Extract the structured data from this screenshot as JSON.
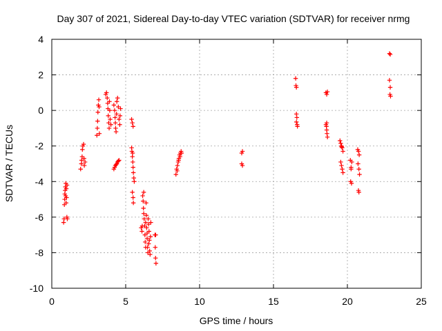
{
  "chart_data": {
    "type": "scatter",
    "title": "Day 307 of 2021, Sidereal Day-to-day VTEC variation (SDTVAR) for receiver nrmg",
    "xlabel": "GPS time / hours",
    "ylabel": "SDTVAR / TECUs",
    "xlim": [
      0,
      25
    ],
    "ylim": [
      -10,
      4
    ],
    "xticks": [
      0,
      5,
      10,
      15,
      20,
      25
    ],
    "yticks": [
      -10,
      -8,
      -6,
      -4,
      -2,
      0,
      2,
      4
    ],
    "xtick_labels": [
      "0",
      "5",
      "10",
      "15",
      "20",
      "25"
    ],
    "ytick_labels": [
      "-10",
      "-8",
      "-6",
      "-4",
      "-2",
      "0",
      "2",
      "4"
    ],
    "grid": true,
    "legend": "none",
    "marker": "plus",
    "color": "#ff0000",
    "points": [
      [
        0.8,
        -6.3
      ],
      [
        0.83,
        -6.1
      ],
      [
        0.85,
        -5.3
      ],
      [
        0.87,
        -5.0
      ],
      [
        0.88,
        -4.7
      ],
      [
        0.9,
        -4.5
      ],
      [
        0.92,
        -4.3
      ],
      [
        0.95,
        -4.1
      ],
      [
        0.97,
        -5.2
      ],
      [
        1.0,
        -4.9
      ],
      [
        1.02,
        -6.0
      ],
      [
        1.05,
        -6.1
      ],
      [
        0.93,
        -4.8
      ],
      [
        0.98,
        -4.4
      ],
      [
        1.03,
        -4.2
      ],
      [
        1.95,
        -3.3
      ],
      [
        2.0,
        -3.0
      ],
      [
        2.02,
        -2.8
      ],
      [
        2.05,
        -2.6
      ],
      [
        2.07,
        -2.2
      ],
      [
        2.1,
        -2.0
      ],
      [
        2.15,
        -1.9
      ],
      [
        2.18,
        -2.7
      ],
      [
        2.2,
        -3.1
      ],
      [
        2.25,
        -2.9
      ],
      [
        3.05,
        -1.4
      ],
      [
        3.08,
        -1.0
      ],
      [
        3.1,
        -0.6
      ],
      [
        3.12,
        -0.1
      ],
      [
        3.15,
        0.3
      ],
      [
        3.18,
        0.6
      ],
      [
        3.2,
        0.2
      ],
      [
        3.22,
        -1.3
      ],
      [
        3.65,
        0.9
      ],
      [
        3.7,
        1.0
      ],
      [
        3.75,
        0.7
      ],
      [
        3.78,
        0.4
      ],
      [
        3.8,
        0.1
      ],
      [
        3.82,
        -0.3
      ],
      [
        3.85,
        -0.7
      ],
      [
        3.88,
        -1.0
      ],
      [
        3.9,
        0.5
      ],
      [
        3.92,
        0.0
      ],
      [
        3.95,
        -0.5
      ],
      [
        4.0,
        -0.8
      ],
      [
        4.2,
        0.3
      ],
      [
        4.25,
        0.0
      ],
      [
        4.28,
        -0.4
      ],
      [
        4.3,
        -0.7
      ],
      [
        4.32,
        -1.0
      ],
      [
        4.35,
        -1.2
      ],
      [
        4.38,
        -0.2
      ],
      [
        4.4,
        0.5
      ],
      [
        4.45,
        0.7
      ],
      [
        4.5,
        0.2
      ],
      [
        4.55,
        -0.5
      ],
      [
        4.6,
        -0.8
      ],
      [
        4.62,
        -0.3
      ],
      [
        4.65,
        0.1
      ],
      [
        4.2,
        -3.3
      ],
      [
        4.25,
        -3.2
      ],
      [
        4.3,
        -3.1
      ],
      [
        4.35,
        -3.05
      ],
      [
        4.4,
        -3.0
      ],
      [
        4.45,
        -2.9
      ],
      [
        4.5,
        -2.85
      ],
      [
        4.55,
        -2.8
      ],
      [
        5.4,
        -0.5
      ],
      [
        5.45,
        -0.7
      ],
      [
        5.5,
        -0.9
      ],
      [
        5.4,
        -2.1
      ],
      [
        5.42,
        -2.3
      ],
      [
        5.45,
        -2.6
      ],
      [
        5.48,
        -2.9
      ],
      [
        5.5,
        -3.2
      ],
      [
        5.52,
        -3.5
      ],
      [
        5.55,
        -3.8
      ],
      [
        5.58,
        -4.0
      ],
      [
        5.45,
        -4.6
      ],
      [
        5.5,
        -4.9
      ],
      [
        5.52,
        -5.2
      ],
      [
        5.47,
        -2.4
      ],
      [
        6.05,
        -6.6
      ],
      [
        6.1,
        -6.8
      ],
      [
        6.15,
        -4.8
      ],
      [
        6.18,
        -5.1
      ],
      [
        6.2,
        -5.5
      ],
      [
        6.22,
        -5.8
      ],
      [
        6.25,
        -6.1
      ],
      [
        6.28,
        -6.5
      ],
      [
        6.3,
        -7.0
      ],
      [
        6.32,
        -7.4
      ],
      [
        6.35,
        -7.7
      ],
      [
        6.38,
        -5.2
      ],
      [
        6.4,
        -5.9
      ],
      [
        6.42,
        -6.6
      ],
      [
        6.45,
        -7.2
      ],
      [
        6.48,
        -7.7
      ],
      [
        6.5,
        -8.0
      ],
      [
        6.52,
        -6.1
      ],
      [
        6.55,
        -6.4
      ],
      [
        6.58,
        -6.8
      ],
      [
        6.6,
        -7.3
      ],
      [
        6.62,
        -7.9
      ],
      [
        6.65,
        -8.1
      ],
      [
        6.68,
        -7.1
      ],
      [
        6.7,
        -6.3
      ],
      [
        6.22,
        -4.6
      ],
      [
        6.35,
        -6.3
      ],
      [
        6.45,
        -6.9
      ],
      [
        6.55,
        -7.5
      ],
      [
        6.12,
        -6.5
      ],
      [
        6.98,
        -7.0
      ],
      [
        7.0,
        -7.7
      ],
      [
        7.02,
        -8.3
      ],
      [
        7.05,
        -8.6
      ],
      [
        7.03,
        -7.0
      ],
      [
        8.4,
        -3.6
      ],
      [
        8.45,
        -3.3
      ],
      [
        8.5,
        -3.1
      ],
      [
        8.55,
        -2.9
      ],
      [
        8.6,
        -2.7
      ],
      [
        8.65,
        -2.5
      ],
      [
        8.7,
        -2.4
      ],
      [
        8.75,
        -2.3
      ],
      [
        8.48,
        -3.4
      ],
      [
        8.58,
        -2.8
      ],
      [
        8.68,
        -2.6
      ],
      [
        8.78,
        -2.4
      ],
      [
        12.85,
        -2.4
      ],
      [
        12.9,
        -2.3
      ],
      [
        12.85,
        -3.0
      ],
      [
        12.9,
        -3.1
      ],
      [
        16.5,
        1.8
      ],
      [
        16.52,
        1.4
      ],
      [
        16.55,
        1.3
      ],
      [
        16.55,
        -0.2
      ],
      [
        16.58,
        -0.4
      ],
      [
        16.6,
        -0.8
      ],
      [
        16.62,
        -0.9
      ],
      [
        16.55,
        -0.65
      ],
      [
        18.55,
        1.0
      ],
      [
        18.6,
        0.9
      ],
      [
        18.65,
        1.05
      ],
      [
        18.55,
        -0.8
      ],
      [
        18.58,
        -0.9
      ],
      [
        18.6,
        -1.1
      ],
      [
        18.62,
        -1.3
      ],
      [
        18.65,
        -1.5
      ],
      [
        18.6,
        -0.7
      ],
      [
        19.5,
        -1.7
      ],
      [
        19.55,
        -1.85
      ],
      [
        19.6,
        -2.0
      ],
      [
        19.65,
        -2.1
      ],
      [
        19.7,
        -2.3
      ],
      [
        19.55,
        -2.9
      ],
      [
        19.6,
        -3.1
      ],
      [
        19.65,
        -3.3
      ],
      [
        19.7,
        -3.5
      ],
      [
        19.62,
        -2.05
      ],
      [
        20.2,
        -2.8
      ],
      [
        20.25,
        -3.2
      ],
      [
        20.3,
        -2.9
      ],
      [
        20.25,
        -3.3
      ],
      [
        20.22,
        -4.0
      ],
      [
        20.28,
        -4.1
      ],
      [
        20.7,
        -2.2
      ],
      [
        20.75,
        -2.3
      ],
      [
        20.8,
        -2.5
      ],
      [
        20.72,
        -3.0
      ],
      [
        20.78,
        -3.3
      ],
      [
        20.82,
        -3.6
      ],
      [
        20.75,
        -4.5
      ],
      [
        20.78,
        -4.6
      ],
      [
        22.85,
        3.2
      ],
      [
        22.9,
        3.15
      ],
      [
        22.85,
        1.7
      ],
      [
        22.9,
        1.3
      ],
      [
        22.88,
        0.9
      ],
      [
        22.92,
        0.8
      ]
    ]
  }
}
